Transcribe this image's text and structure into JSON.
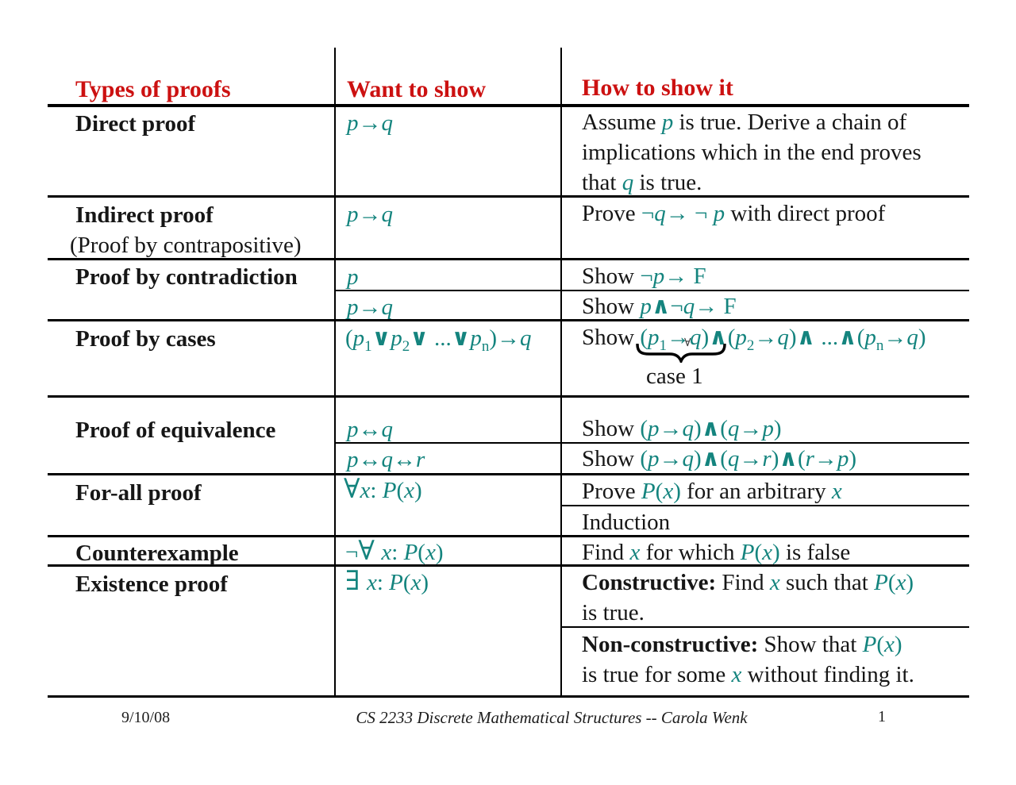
{
  "colors": {
    "teal": "#14847e",
    "red": "#cc1111",
    "ink": "#161616"
  },
  "table": {
    "header": {
      "types": "Types of proofs",
      "want": "Want to show",
      "how": "How to show it"
    },
    "rows": {
      "direct": {
        "type": [
          {
            "t": "Direct proof",
            "s": "b"
          }
        ],
        "want": [
          {
            "t": "p",
            "s": "m"
          },
          {
            "t": "→",
            "s": "mo"
          },
          {
            "t": "q",
            "s": "m"
          }
        ],
        "how1": [
          {
            "t": "Assume ",
            "s": "n"
          },
          {
            "t": "p",
            "s": "m"
          },
          {
            "t": " is true. Derive a chain of",
            "s": "n"
          }
        ],
        "how2": [
          {
            "t": "implications which in the end proves",
            "s": "n"
          }
        ],
        "how3": [
          {
            "t": "that ",
            "s": "n"
          },
          {
            "t": "q",
            "s": "m"
          },
          {
            "t": " is true.",
            "s": "n"
          }
        ]
      },
      "indirect": {
        "type1": [
          {
            "t": "Indirect proof",
            "s": "b"
          }
        ],
        "type2": [
          {
            "t": "(Proof by contrapositive)",
            "s": "n"
          }
        ],
        "want": [
          {
            "t": "p",
            "s": "m"
          },
          {
            "t": "→",
            "s": "mo"
          },
          {
            "t": "q",
            "s": "m"
          }
        ],
        "how": [
          {
            "t": "Prove ",
            "s": "n"
          },
          {
            "t": "¬",
            "s": "mo"
          },
          {
            "t": "q",
            "s": "m"
          },
          {
            "t": "→",
            "s": "mo"
          },
          {
            "t": " ¬ ",
            "s": "mo"
          },
          {
            "t": "p",
            "s": "m"
          },
          {
            "t": " with direct proof",
            "s": "n"
          }
        ]
      },
      "contradiction": {
        "type": [
          {
            "t": "Proof by contradiction",
            "s": "b"
          }
        ],
        "want_a": [
          {
            "t": "p",
            "s": "m"
          }
        ],
        "how_a": [
          {
            "t": "Show ",
            "s": "n"
          },
          {
            "t": "¬",
            "s": "mo"
          },
          {
            "t": "p",
            "s": "m"
          },
          {
            "t": "→",
            "s": "mo"
          },
          {
            "t": " F",
            "s": "mo"
          }
        ],
        "want_b": [
          {
            "t": "p",
            "s": "m"
          },
          {
            "t": "→",
            "s": "mo"
          },
          {
            "t": "q",
            "s": "m"
          }
        ],
        "how_b": [
          {
            "t": "Show ",
            "s": "n"
          },
          {
            "t": "p",
            "s": "m"
          },
          {
            "t": "∧",
            "s": "mb"
          },
          {
            "t": "¬",
            "s": "mo"
          },
          {
            "t": "q",
            "s": "m"
          },
          {
            "t": "→",
            "s": "mo"
          },
          {
            "t": " F",
            "s": "mo"
          }
        ]
      },
      "cases": {
        "type": [
          {
            "t": "Proof by cases",
            "s": "b"
          }
        ],
        "want": [
          {
            "t": "(",
            "s": "mo"
          },
          {
            "t": "p",
            "s": "m"
          },
          {
            "t": "1",
            "s": "msub"
          },
          {
            "t": "∨",
            "s": "mb"
          },
          {
            "t": "p",
            "s": "m"
          },
          {
            "t": "2",
            "s": "msub"
          },
          {
            "t": "∨",
            "s": "mb"
          },
          {
            "t": " ...",
            "s": "mo"
          },
          {
            "t": "∨",
            "s": "mb"
          },
          {
            "t": "p",
            "s": "m"
          },
          {
            "t": "n",
            "s": "msub"
          },
          {
            "t": ")",
            "s": "mo"
          },
          {
            "t": "→",
            "s": "mo"
          },
          {
            "t": "q",
            "s": "m"
          }
        ],
        "how": [
          {
            "t": "Show ",
            "s": "n"
          },
          {
            "t": "(",
            "s": "mo"
          },
          {
            "t": "p",
            "s": "m"
          },
          {
            "t": "1",
            "s": "msub"
          },
          {
            "t": "→",
            "s": "mo"
          },
          {
            "t": "q",
            "s": "m"
          },
          {
            "t": ")",
            "s": "mo"
          },
          {
            "t": "∧",
            "s": "mb"
          },
          {
            "t": "(",
            "s": "mo"
          },
          {
            "t": "p",
            "s": "m"
          },
          {
            "t": "2",
            "s": "msub"
          },
          {
            "t": "→",
            "s": "mo"
          },
          {
            "t": "q",
            "s": "m"
          },
          {
            "t": ")",
            "s": "mo"
          },
          {
            "t": "∧",
            "s": "mb"
          },
          {
            "t": " ...",
            "s": "mo"
          },
          {
            "t": "∧",
            "s": "mb"
          },
          {
            "t": "(",
            "s": "mo"
          },
          {
            "t": "p",
            "s": "m"
          },
          {
            "t": "n",
            "s": "msub"
          },
          {
            "t": "→",
            "s": "mo"
          },
          {
            "t": "q",
            "s": "m"
          },
          {
            "t": ")",
            "s": "mo"
          }
        ],
        "case_label": "case 1",
        "tiny_glyph": "∀"
      },
      "equivalence": {
        "type": [
          {
            "t": "Proof of equivalence",
            "s": "b"
          }
        ],
        "want_a": [
          {
            "t": "p",
            "s": "m"
          },
          {
            "t": "↔",
            "s": "mo"
          },
          {
            "t": "q",
            "s": "m"
          }
        ],
        "how_a": [
          {
            "t": "Show ",
            "s": "n"
          },
          {
            "t": "(",
            "s": "mo"
          },
          {
            "t": "p",
            "s": "m"
          },
          {
            "t": "→",
            "s": "mo"
          },
          {
            "t": "q",
            "s": "m"
          },
          {
            "t": ")",
            "s": "mo"
          },
          {
            "t": "∧",
            "s": "mb"
          },
          {
            "t": "(",
            "s": "mo"
          },
          {
            "t": "q",
            "s": "m"
          },
          {
            "t": "→",
            "s": "mo"
          },
          {
            "t": "p",
            "s": "m"
          },
          {
            "t": ")",
            "s": "mo"
          }
        ],
        "want_b": [
          {
            "t": "p",
            "s": "m"
          },
          {
            "t": "↔",
            "s": "mo"
          },
          {
            "t": "q",
            "s": "m"
          },
          {
            "t": "↔",
            "s": "mo"
          },
          {
            "t": "r",
            "s": "m"
          }
        ],
        "how_b": [
          {
            "t": "Show ",
            "s": "n"
          },
          {
            "t": "(",
            "s": "mo"
          },
          {
            "t": "p",
            "s": "m"
          },
          {
            "t": "→",
            "s": "mo"
          },
          {
            "t": "q",
            "s": "m"
          },
          {
            "t": ")",
            "s": "mo"
          },
          {
            "t": "∧",
            "s": "mb"
          },
          {
            "t": "(",
            "s": "mo"
          },
          {
            "t": "q",
            "s": "m"
          },
          {
            "t": "→",
            "s": "mo"
          },
          {
            "t": "r",
            "s": "m"
          },
          {
            "t": ")",
            "s": "mo"
          },
          {
            "t": "∧",
            "s": "mb"
          },
          {
            "t": "(",
            "s": "mo"
          },
          {
            "t": "r",
            "s": "m"
          },
          {
            "t": "→",
            "s": "mo"
          },
          {
            "t": "p",
            "s": "m"
          },
          {
            "t": ")",
            "s": "mo"
          }
        ]
      },
      "forall": {
        "type": [
          {
            "t": "For-all proof",
            "s": "b"
          }
        ],
        "want": [
          {
            "t": "∀",
            "s": "big"
          },
          {
            "t": "x",
            "s": "m"
          },
          {
            "t": ": ",
            "s": "mo"
          },
          {
            "t": "P",
            "s": "m"
          },
          {
            "t": "(",
            "s": "mo"
          },
          {
            "t": "x",
            "s": "m"
          },
          {
            "t": ")",
            "s": "mo"
          }
        ],
        "how_a": [
          {
            "t": "Prove ",
            "s": "n"
          },
          {
            "t": "P",
            "s": "m"
          },
          {
            "t": "(",
            "s": "mo"
          },
          {
            "t": "x",
            "s": "m"
          },
          {
            "t": ")",
            "s": "mo"
          },
          {
            "t": " for an arbitrary ",
            "s": "n"
          },
          {
            "t": "x",
            "s": "m"
          }
        ],
        "how_b": [
          {
            "t": "Induction",
            "s": "n"
          }
        ]
      },
      "counterexample": {
        "type": [
          {
            "t": "Counterexample",
            "s": "b"
          }
        ],
        "want": [
          {
            "t": "¬",
            "s": "mo"
          },
          {
            "t": "∀ ",
            "s": "big"
          },
          {
            "t": "x",
            "s": "m"
          },
          {
            "t": ": ",
            "s": "mo"
          },
          {
            "t": "P",
            "s": "m"
          },
          {
            "t": "(",
            "s": "mo"
          },
          {
            "t": "x",
            "s": "m"
          },
          {
            "t": ")",
            "s": "mo"
          }
        ],
        "how": [
          {
            "t": "Find ",
            "s": "n"
          },
          {
            "t": "x",
            "s": "m"
          },
          {
            "t": " for which ",
            "s": "n"
          },
          {
            "t": "P",
            "s": "m"
          },
          {
            "t": "(",
            "s": "mo"
          },
          {
            "t": "x",
            "s": "m"
          },
          {
            "t": ")",
            "s": "mo"
          },
          {
            "t": " is false",
            "s": "n"
          }
        ]
      },
      "existence": {
        "type": [
          {
            "t": "Existence proof",
            "s": "b"
          }
        ],
        "want": [
          {
            "t": "∃ ",
            "s": "big"
          },
          {
            "t": "x",
            "s": "m"
          },
          {
            "t": ": ",
            "s": "mo"
          },
          {
            "t": "P",
            "s": "m"
          },
          {
            "t": "(",
            "s": "mo"
          },
          {
            "t": "x",
            "s": "m"
          },
          {
            "t": ")",
            "s": "mo"
          }
        ],
        "how_a1": [
          {
            "t": "Constructive:",
            "s": "b"
          },
          {
            "t": " Find ",
            "s": "n"
          },
          {
            "t": "x",
            "s": "m"
          },
          {
            "t": " such that ",
            "s": "n"
          },
          {
            "t": "P",
            "s": "m"
          },
          {
            "t": "(",
            "s": "mo"
          },
          {
            "t": "x",
            "s": "m"
          },
          {
            "t": ")",
            "s": "mo"
          }
        ],
        "how_a2": [
          {
            "t": "is true.",
            "s": "n"
          }
        ],
        "how_b1": [
          {
            "t": "Non-constructive:",
            "s": "b"
          },
          {
            "t": " Show that ",
            "s": "n"
          },
          {
            "t": "P",
            "s": "m"
          },
          {
            "t": "(",
            "s": "mo"
          },
          {
            "t": "x",
            "s": "m"
          },
          {
            "t": ")",
            "s": "mo"
          }
        ],
        "how_b2": [
          {
            "t": "is true for some ",
            "s": "n"
          },
          {
            "t": "x",
            "s": "m"
          },
          {
            "t": " without finding it.",
            "s": "n"
          }
        ]
      }
    }
  },
  "footer": {
    "date": "9/10/08",
    "course": "CS 2233 Discrete Mathematical Structures -- Carola Wenk",
    "page": "1"
  }
}
